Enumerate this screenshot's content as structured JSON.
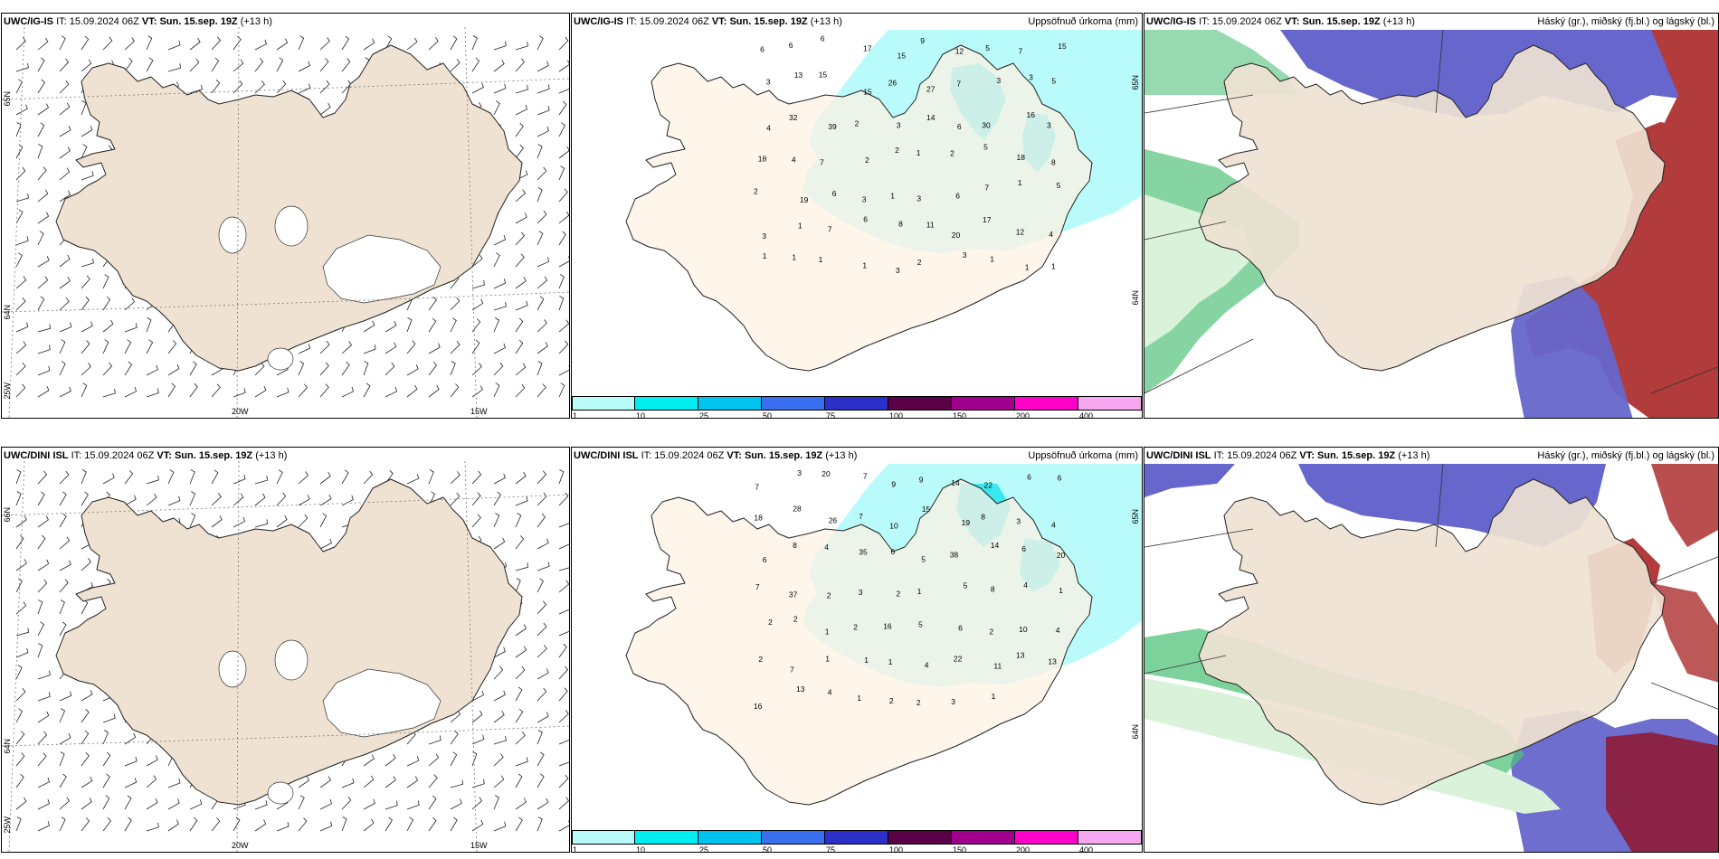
{
  "rows": [
    {
      "model": "UWC/IG-IS",
      "it_label": "IT:",
      "it_value": "15.09.2024 06Z",
      "vt_label": "VT:",
      "vt_value": "Sun. 15.sep. 19Z",
      "lead": "(+13 h)",
      "wind_axis": {
        "lat_top": "65N",
        "lat_bottom": "64N",
        "lon_left": "25W",
        "lon_mid": "20W",
        "lon_right": "15W"
      },
      "precip_axis": {
        "lat_top": "65N",
        "lat_bottom": "64N"
      },
      "precip_values": [
        "6",
        "6",
        "6",
        "17",
        "15",
        "9",
        "12",
        "5",
        "7",
        "15",
        "3",
        "13",
        "15",
        "15",
        "26",
        "27",
        "7",
        "3",
        "3",
        "5",
        "4",
        "32",
        "39",
        "2",
        "3",
        "14",
        "6",
        "30",
        "16",
        "3",
        "18",
        "4",
        "7",
        "2",
        "2",
        "1",
        "2",
        "5",
        "18",
        "8",
        "2",
        "19",
        "6",
        "3",
        "1",
        "3",
        "6",
        "7",
        "1",
        "5",
        "3",
        "1",
        "7",
        "6",
        "8",
        "11",
        "20",
        "17",
        "12",
        "4",
        "1",
        "1",
        "1",
        "1",
        "3",
        "2",
        "3",
        "1",
        "1",
        "1"
      ]
    },
    {
      "model": "UWC/DINI ISL",
      "it_label": "IT:",
      "it_value": "15.09.2024 06Z",
      "vt_label": "VT:",
      "vt_value": "Sun. 15.sep. 19Z",
      "lead": "(+13 h)",
      "wind_axis": {
        "lat_top": "66N",
        "lat_bottom": "64N",
        "lon_left": "25W",
        "lon_mid": "20W",
        "lon_right": "15W"
      },
      "precip_axis": {
        "lat_top": "65N",
        "lat_bottom": "64N"
      },
      "precip_values": [
        "7",
        "3",
        "20",
        "7",
        "9",
        "9",
        "14",
        "22",
        "6",
        "6",
        "18",
        "28",
        "26",
        "7",
        "10",
        "15",
        "19",
        "8",
        "3",
        "4",
        "6",
        "8",
        "4",
        "35",
        "6",
        "5",
        "38",
        "14",
        "6",
        "20",
        "7",
        "37",
        "2",
        "3",
        "2",
        "1",
        "5",
        "8",
        "4",
        "1",
        "2",
        "2",
        "1",
        "2",
        "16",
        "5",
        "6",
        "2",
        "10",
        "4",
        "2",
        "7",
        "1",
        "1",
        "1",
        "4",
        "22",
        "11",
        "13",
        "13",
        "16",
        "13",
        "4",
        "1",
        "2",
        "2",
        "3",
        "1"
      ]
    }
  ],
  "precip_title": "Uppsöfnuð úrkoma (mm)",
  "cloud_title": "Háský (gr.), miðský (fj.bl.) og lágský (bl.)",
  "colorbar": {
    "ticks": [
      "1",
      "10",
      "25",
      "50",
      "75",
      "100",
      "150",
      "200",
      "400"
    ],
    "colors": [
      "#b9fbfb",
      "#00eef0",
      "#00c4ef",
      "#3a6ff0",
      "#2d2fc9",
      "#5b0047",
      "#a1008c",
      "#ff00c8",
      "#f5a8f0"
    ]
  },
  "colors": {
    "land": "#efe2d2",
    "precip_land": "#fdf1e4",
    "precip_light": "#b9fbfb",
    "precip_mid": "#22e4ec",
    "high_cloud": "#6666cc",
    "mid_cloud": "#b23b3b",
    "low_cloud": "#52c27a",
    "border": "#000000"
  }
}
